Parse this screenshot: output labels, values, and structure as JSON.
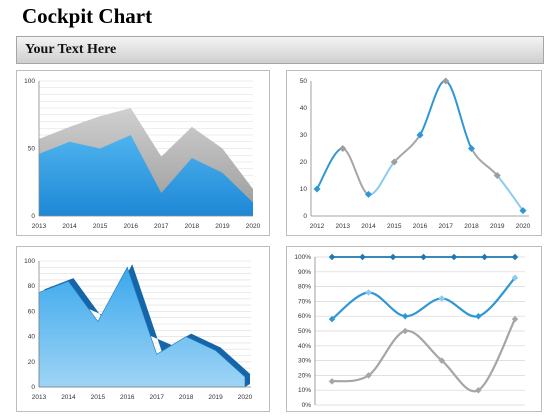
{
  "title": "Cockpit Chart",
  "subtitle": "Your Text Here",
  "colors": {
    "blue": "#2f97d6",
    "light_blue": "#8fcaf0",
    "gray": "#a6a6a6",
    "dark_gray": "#8c8c8c",
    "dark_blue": "#1f77b4"
  },
  "chart_data": [
    {
      "type": "area",
      "categories": [
        "2013",
        "2014",
        "2015",
        "2016",
        "2017",
        "2018",
        "2019",
        "2020"
      ],
      "ylim": [
        0,
        100
      ],
      "yticks": [
        "0",
        "50",
        "100"
      ],
      "grid": true,
      "series": [
        {
          "values": [
            57,
            66,
            74,
            80,
            44,
            66,
            50,
            20
          ]
        },
        {
          "values": [
            46,
            55,
            50,
            60,
            17,
            43,
            32,
            10
          ]
        }
      ]
    },
    {
      "type": "line",
      "categories": [
        "2012",
        "2013",
        "2014",
        "2015",
        "2016",
        "2017",
        "2018",
        "2019",
        "2020"
      ],
      "ylim": [
        0,
        50
      ],
      "yticks": [
        "0",
        "10",
        "20",
        "30",
        "40",
        "50"
      ],
      "grid": false,
      "series": [
        {
          "values": [
            10,
            25,
            8,
            20,
            30,
            50,
            25,
            15,
            2
          ]
        }
      ]
    },
    {
      "type": "area",
      "categories": [
        "2013",
        "2014",
        "2015",
        "2016",
        "2017",
        "2018",
        "2019",
        "2020"
      ],
      "ylim": [
        0,
        100
      ],
      "yticks": [
        "0",
        "20",
        "40",
        "60",
        "80",
        "100"
      ],
      "grid": true,
      "series": [
        {
          "values": [
            75,
            84,
            52,
            95,
            26,
            40,
            29,
            8
          ]
        }
      ]
    },
    {
      "type": "line",
      "ylim": [
        0,
        100
      ],
      "yticks": [
        "0%",
        "10%",
        "20%",
        "30%",
        "40%",
        "50%",
        "60%",
        "70%",
        "80%",
        "90%",
        "100%"
      ],
      "grid": true,
      "series": [
        {
          "values": [
            100,
            100,
            100,
            100,
            100,
            100,
            100
          ]
        },
        {
          "values": [
            58,
            76,
            60,
            72,
            60,
            86
          ]
        },
        {
          "values": [
            16,
            20,
            50,
            30,
            10,
            58
          ]
        }
      ]
    }
  ]
}
